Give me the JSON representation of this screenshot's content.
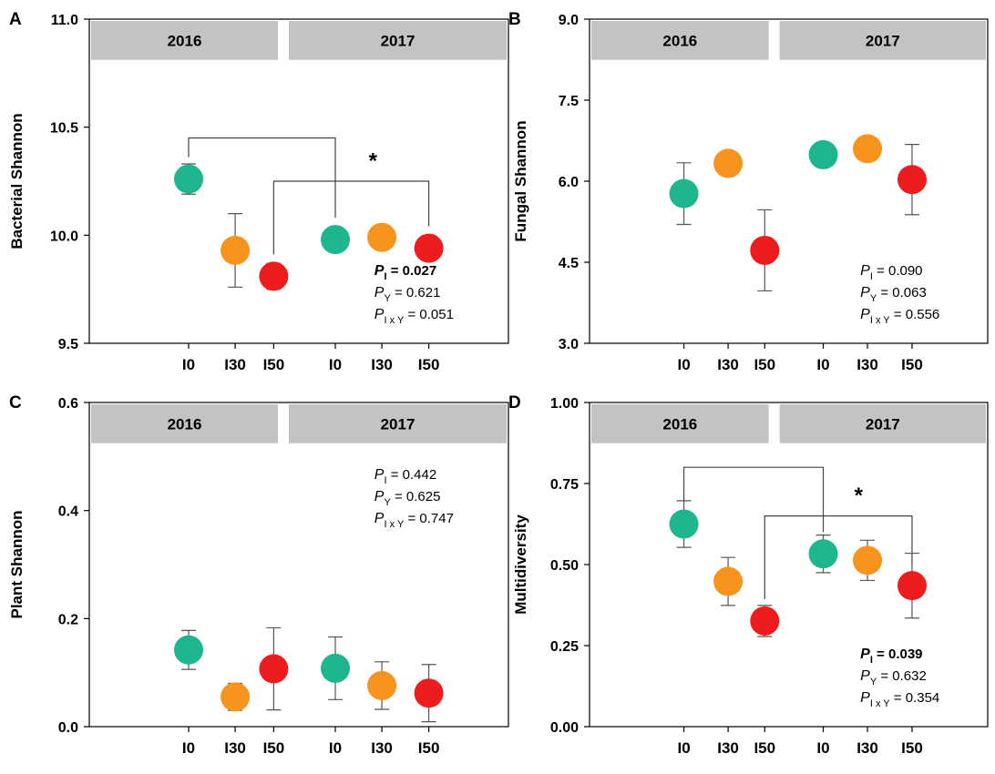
{
  "colors": {
    "I0": "#1db68e",
    "I30": "#f7941d",
    "I50": "#ee1c1c",
    "strip": "#c3c3c3"
  },
  "chart_data": [
    {
      "panel": "A",
      "type": "scatter",
      "ylabel": "Bacterial Shannon",
      "ylim": [
        9.5,
        11.0
      ],
      "yticks": [
        "9.5",
        "10.0",
        "10.5",
        "11.0"
      ],
      "ytick_values": [
        9.5,
        10.0,
        10.5,
        11.0
      ],
      "years": [
        "2016",
        "2017"
      ],
      "categories": [
        "I0",
        "I30",
        "I50"
      ],
      "series": [
        {
          "year": "2016",
          "means": [
            10.26,
            9.93,
            9.81
          ],
          "errors": [
            0.07,
            0.17,
            0.06
          ]
        },
        {
          "year": "2017",
          "means": [
            9.98,
            9.99,
            9.94
          ],
          "errors": [
            null,
            null,
            null
          ]
        }
      ],
      "brackets": [
        {
          "from": "2016 I0",
          "to": "2017 I0",
          "level": 10.45
        },
        {
          "from": "2016 I50",
          "to": "2017 I50",
          "level": 10.25
        }
      ],
      "significance": "*",
      "star_position": 10.37,
      "stats_position": "bottom-right",
      "stats": [
        {
          "p": "P",
          "sub": "I",
          "text": " = 0.027",
          "bold": true
        },
        {
          "p": "P",
          "sub": "Y",
          "text": " =  0.621",
          "bold": false
        },
        {
          "p": "P",
          "sub": "I x Y",
          "text": " = 0.051",
          "bold": false
        }
      ]
    },
    {
      "panel": "B",
      "type": "scatter",
      "ylabel": "Fungal Shannon",
      "ylim": [
        3.0,
        9.0
      ],
      "yticks": [
        "3.0",
        "4.5",
        "6.0",
        "7.5",
        "9.0"
      ],
      "ytick_values": [
        3.0,
        4.5,
        6.0,
        7.5,
        9.0
      ],
      "years": [
        "2016",
        "2017"
      ],
      "categories": [
        "I0",
        "I30",
        "I50"
      ],
      "series": [
        {
          "year": "2016",
          "means": [
            5.77,
            6.33,
            4.72
          ],
          "errors": [
            0.57,
            null,
            0.75
          ]
        },
        {
          "year": "2017",
          "means": [
            6.49,
            6.6,
            6.03
          ],
          "errors": [
            null,
            null,
            0.65
          ]
        }
      ],
      "brackets": [],
      "significance": "",
      "stats_position": "bottom-right",
      "stats": [
        {
          "p": "P",
          "sub": "I",
          "text": " = 0.090",
          "bold": false
        },
        {
          "p": "P",
          "sub": "Y",
          "text": " =  0.063",
          "bold": false
        },
        {
          "p": "P",
          "sub": "I x Y",
          "text": " = 0.556",
          "bold": false
        }
      ]
    },
    {
      "panel": "C",
      "type": "scatter",
      "ylabel": "Plant Shannon",
      "ylim": [
        0.0,
        0.6
      ],
      "yticks": [
        "0.0",
        "0.2",
        "0.4",
        "0.6"
      ],
      "ytick_values": [
        0.0,
        0.2,
        0.4,
        0.6
      ],
      "years": [
        "2016",
        "2017"
      ],
      "categories": [
        "I0",
        "I30",
        "I50"
      ],
      "series": [
        {
          "year": "2016",
          "means": [
            0.142,
            0.055,
            0.107
          ],
          "errors": [
            0.036,
            0.025,
            0.076
          ]
        },
        {
          "year": "2017",
          "means": [
            0.108,
            0.076,
            0.062
          ],
          "errors": [
            0.058,
            0.044,
            0.053
          ]
        }
      ],
      "brackets": [],
      "significance": "",
      "stats_position": "top-right",
      "stats": [
        {
          "p": "P",
          "sub": "I",
          "text": " = 0.442",
          "bold": false
        },
        {
          "p": "P",
          "sub": "Y",
          "text": " =  0.625",
          "bold": false
        },
        {
          "p": "P",
          "sub": "I x Y",
          "text": " = 0.747",
          "bold": false
        }
      ]
    },
    {
      "panel": "D",
      "type": "scatter",
      "ylabel": "Multidiversity",
      "ylim": [
        0.0,
        1.0
      ],
      "yticks": [
        "0.00",
        "0.25",
        "0.50",
        "0.75",
        "1.00"
      ],
      "ytick_values": [
        0.0,
        0.25,
        0.5,
        0.75,
        1.0
      ],
      "years": [
        "2016",
        "2017"
      ],
      "categories": [
        "I0",
        "I30",
        "I50"
      ],
      "series": [
        {
          "year": "2016",
          "means": [
            0.625,
            0.448,
            0.326
          ],
          "errors": [
            0.072,
            0.074,
            0.048
          ]
        },
        {
          "year": "2017",
          "means": [
            0.533,
            0.513,
            0.435
          ],
          "errors": [
            0.058,
            0.062,
            0.1
          ]
        }
      ],
      "brackets": [
        {
          "from": "2016 I0",
          "to": "2017 I0",
          "level": 0.8
        },
        {
          "from": "2016 I50",
          "to": "2017 I50",
          "level": 0.65
        }
      ],
      "significance": "*",
      "star_position": 0.73,
      "stats_position": "bottom-right",
      "stats": [
        {
          "p": "P",
          "sub": "I",
          "text": " = 0.039",
          "bold": true
        },
        {
          "p": "P",
          "sub": "Y",
          "text": " =  0.632",
          "bold": false
        },
        {
          "p": "P",
          "sub": "I x Y",
          "text": " = 0.354",
          "bold": false
        }
      ]
    }
  ]
}
